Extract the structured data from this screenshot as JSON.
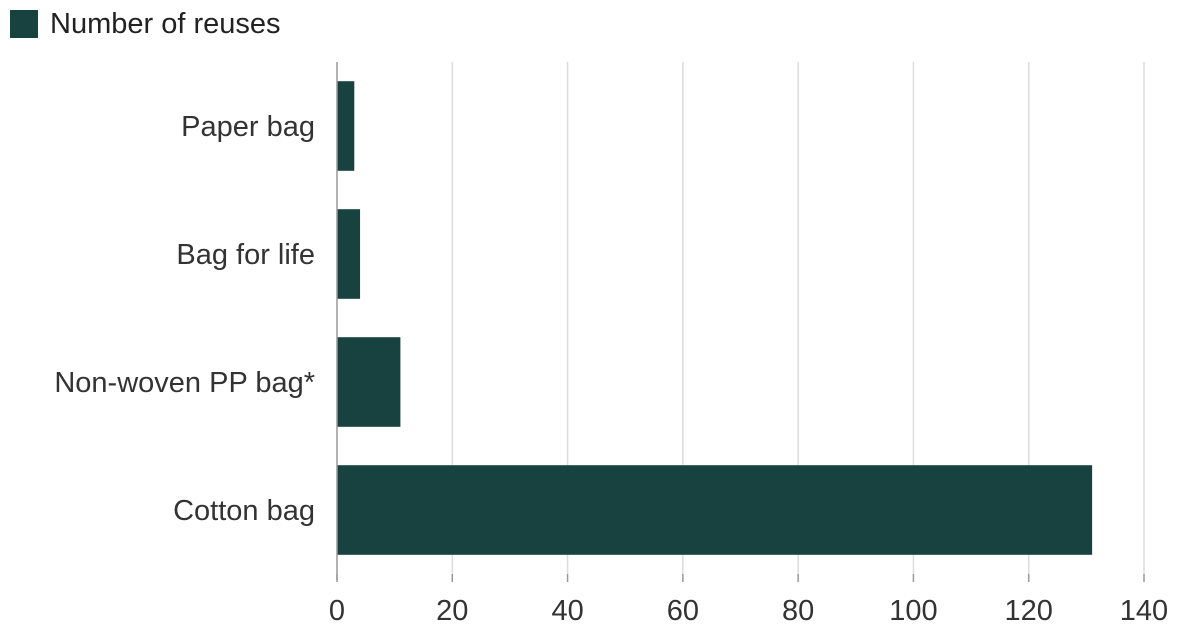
{
  "legend": {
    "label": "Number of reuses",
    "color": "#17423f"
  },
  "chart_data": {
    "type": "bar",
    "orientation": "horizontal",
    "categories": [
      "Paper bag",
      "Bag for life",
      "Non-woven PP bag*",
      "Cotton bag"
    ],
    "series": [
      {
        "name": "Number of reuses",
        "values": [
          3,
          4,
          11,
          131
        ],
        "color": "#17423f"
      }
    ],
    "xlim": [
      0,
      140
    ],
    "xticks": [
      0,
      20,
      40,
      60,
      80,
      100,
      120,
      140
    ],
    "grid": true,
    "legend_position": "top-left"
  }
}
